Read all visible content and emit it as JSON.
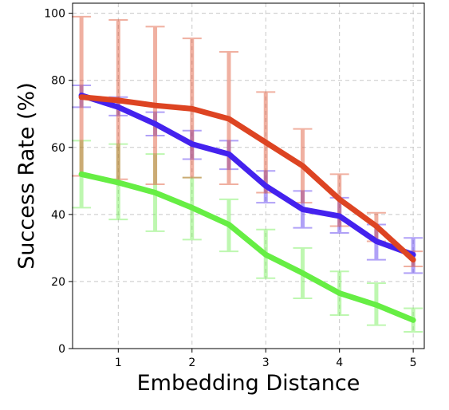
{
  "chart_data": {
    "type": "line",
    "xlabel": "Embedding Distance",
    "ylabel": "Success Rate (%)",
    "xlim": [
      0.38,
      5.15
    ],
    "ylim": [
      0,
      103
    ],
    "xticks": [
      1,
      2,
      3,
      4,
      5
    ],
    "yticks": [
      0,
      20,
      40,
      60,
      80,
      100
    ],
    "grid": true,
    "x": [
      0.5,
      1,
      1.5,
      2,
      2.5,
      3,
      3.5,
      4,
      4.5,
      5
    ],
    "series": [
      {
        "color": "#66ee44",
        "values": [
          52,
          49.5,
          46.5,
          42,
          37,
          28,
          22.5,
          16.5,
          13,
          8.5
        ],
        "err_low": [
          42,
          38.5,
          35,
          32.5,
          29,
          21,
          15,
          10,
          7,
          5
        ],
        "err_high": [
          62,
          61,
          58,
          51,
          44.5,
          35.5,
          30,
          23,
          19.5,
          12
        ]
      },
      {
        "color": "#4422ee",
        "values": [
          75.5,
          72,
          67,
          61,
          58,
          48.5,
          41.5,
          39.5,
          32,
          28
        ],
        "err_low": [
          72,
          69.5,
          63.5,
          56.5,
          53.5,
          43.5,
          36,
          34.5,
          26.5,
          22.5
        ],
        "err_high": [
          78.5,
          75,
          70.5,
          65,
          62,
          53,
          47,
          45,
          37,
          33
        ]
      },
      {
        "color": "#dd4422",
        "values": [
          75,
          74,
          72.5,
          71.5,
          68.5,
          61.5,
          54.5,
          44.5,
          36.5,
          26.5
        ],
        "err_low": [
          51.5,
          50.5,
          49,
          51,
          49,
          46.5,
          43.5,
          36.5,
          32,
          24.5
        ],
        "err_high": [
          99,
          98,
          96,
          92.5,
          88.5,
          76.5,
          65.5,
          52,
          40.5,
          29
        ]
      }
    ]
  }
}
